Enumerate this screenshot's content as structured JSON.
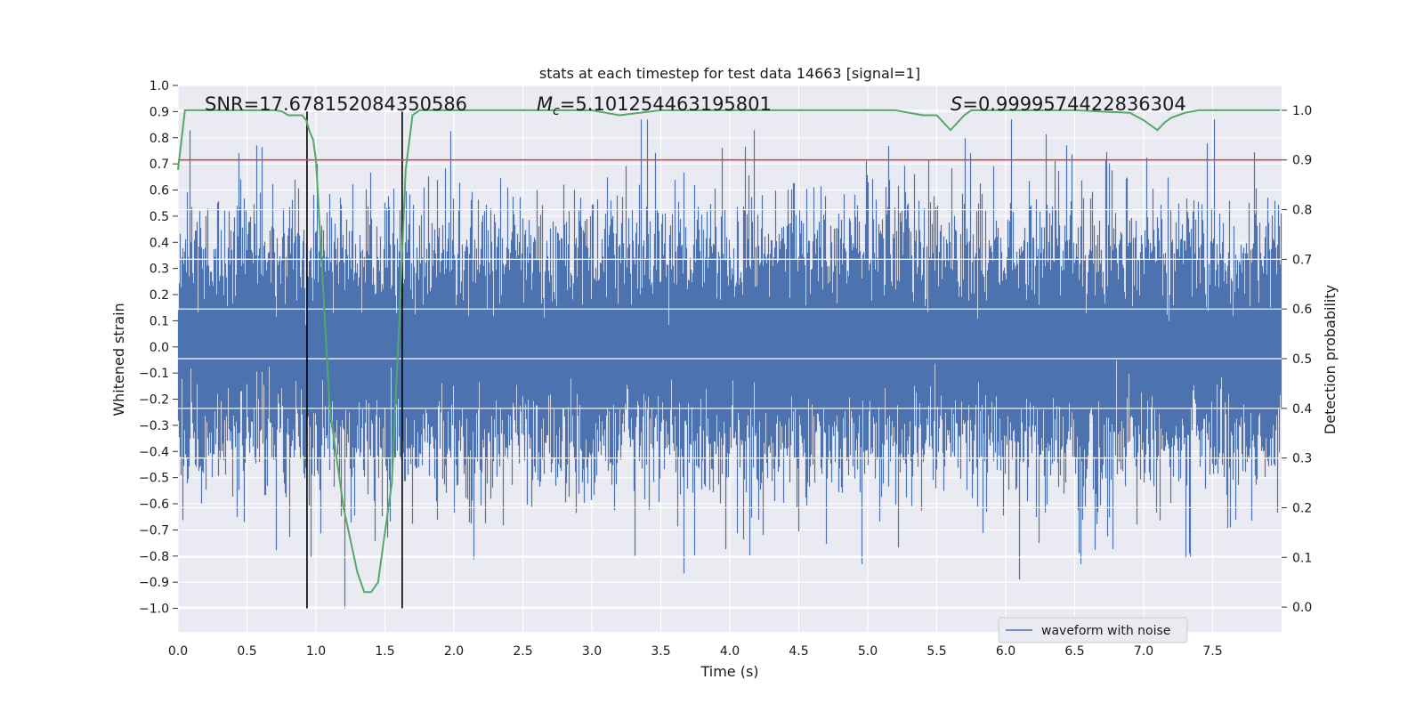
{
  "chart_data": {
    "type": "line",
    "title": "stats at each timestep for test data 14663 [signal=1]",
    "xlabel": "Time (s)",
    "ylabel_left": "Whitened strain",
    "ylabel_right": "Detection probability",
    "xlim": [
      0.0,
      8.0
    ],
    "ylim_left": [
      -1.09,
      1.0
    ],
    "ylim_right": [
      -0.05,
      1.05
    ],
    "x_ticks": [
      "0.0",
      "0.5",
      "1.0",
      "1.5",
      "2.0",
      "2.5",
      "3.0",
      "3.5",
      "4.0",
      "4.5",
      "5.0",
      "5.5",
      "6.0",
      "6.5",
      "7.0",
      "7.5"
    ],
    "x_tick_values": [
      0.0,
      0.5,
      1.0,
      1.5,
      2.0,
      2.5,
      3.0,
      3.5,
      4.0,
      4.5,
      5.0,
      5.5,
      6.0,
      6.5,
      7.0,
      7.5
    ],
    "y_left_ticks": [
      "1.0",
      "0.9",
      "0.8",
      "0.7",
      "0.6",
      "0.5",
      "0.4",
      "0.3",
      "0.2",
      "0.1",
      "0.0",
      "−0.1",
      "−0.2",
      "−0.3",
      "−0.4",
      "−0.5",
      "−0.6",
      "−0.7",
      "−0.8",
      "−0.9",
      "−1.0"
    ],
    "y_left_tick_values": [
      1.0,
      0.9,
      0.8,
      0.7,
      0.6,
      0.5,
      0.4,
      0.3,
      0.2,
      0.1,
      0.0,
      -0.1,
      -0.2,
      -0.3,
      -0.4,
      -0.5,
      -0.6,
      -0.7,
      -0.8,
      -0.9,
      -1.0
    ],
    "y_right_ticks": [
      "1.0",
      "0.9",
      "0.8",
      "0.7",
      "0.6",
      "0.5",
      "0.4",
      "0.3",
      "0.2",
      "0.1",
      "0.0"
    ],
    "y_right_tick_values": [
      1.0,
      0.9,
      0.8,
      0.7,
      0.6,
      0.5,
      0.4,
      0.3,
      0.2,
      0.1,
      0.0
    ],
    "grid": true,
    "legend": {
      "position": "lower-right",
      "entries": [
        "waveform with noise"
      ]
    },
    "annotations": {
      "snr": "SNR=17.678152084350586",
      "mc_symbol": "M",
      "mc_sub": "c",
      "mc_value": "=5.101254463195801",
      "s_symbol": "S",
      "s_value": "=0.9999574422836304"
    },
    "threshold": {
      "axis": "right",
      "value": 0.9,
      "color": "#c44e52"
    },
    "vertical_lines": {
      "x": [
        0.935,
        1.625
      ],
      "y_from": -1.0,
      "y_to": 0.9,
      "color": "#000000"
    },
    "series": [
      {
        "name": "waveform with noise",
        "axis": "left",
        "color": "#4c72b0",
        "kind": "noise",
        "n_samples": 16384,
        "core_std": 0.22,
        "typical_peak_range": [
          0.3,
          0.55
        ],
        "peak_max": 0.87,
        "trough_min": -1.0
      },
      {
        "name": "detection probability",
        "axis": "right",
        "color": "#55a868",
        "x": [
          0.0,
          0.05,
          0.1,
          0.2,
          0.3,
          0.4,
          0.5,
          0.6,
          0.7,
          0.75,
          0.8,
          0.85,
          0.9,
          0.93,
          0.95,
          0.98,
          1.0,
          1.05,
          1.1,
          1.2,
          1.3,
          1.35,
          1.4,
          1.45,
          1.5,
          1.55,
          1.6,
          1.65,
          1.7,
          1.75,
          1.8,
          2.0,
          2.5,
          2.8,
          3.0,
          3.2,
          3.5,
          4.0,
          4.5,
          5.0,
          5.2,
          5.4,
          5.5,
          5.6,
          5.7,
          5.75,
          5.8,
          6.0,
          6.5,
          6.9,
          7.0,
          7.05,
          7.1,
          7.15,
          7.2,
          7.3,
          7.4,
          7.5,
          7.99
        ],
        "values": [
          0.88,
          1.0,
          1.0,
          1.0,
          1.0,
          1.0,
          1.0,
          1.0,
          1.0,
          0.998,
          0.99,
          0.99,
          0.99,
          0.98,
          0.96,
          0.94,
          0.9,
          0.65,
          0.4,
          0.2,
          0.07,
          0.03,
          0.03,
          0.05,
          0.15,
          0.25,
          0.55,
          0.88,
          0.99,
          1.0,
          1.0,
          1.0,
          1.0,
          1.0,
          1.0,
          0.99,
          1.0,
          1.0,
          1.0,
          1.0,
          1.0,
          0.99,
          0.99,
          0.96,
          0.99,
          1.0,
          1.0,
          1.0,
          1.0,
          0.995,
          0.98,
          0.97,
          0.96,
          0.975,
          0.985,
          0.995,
          1.0,
          1.0,
          1.0
        ]
      }
    ]
  }
}
